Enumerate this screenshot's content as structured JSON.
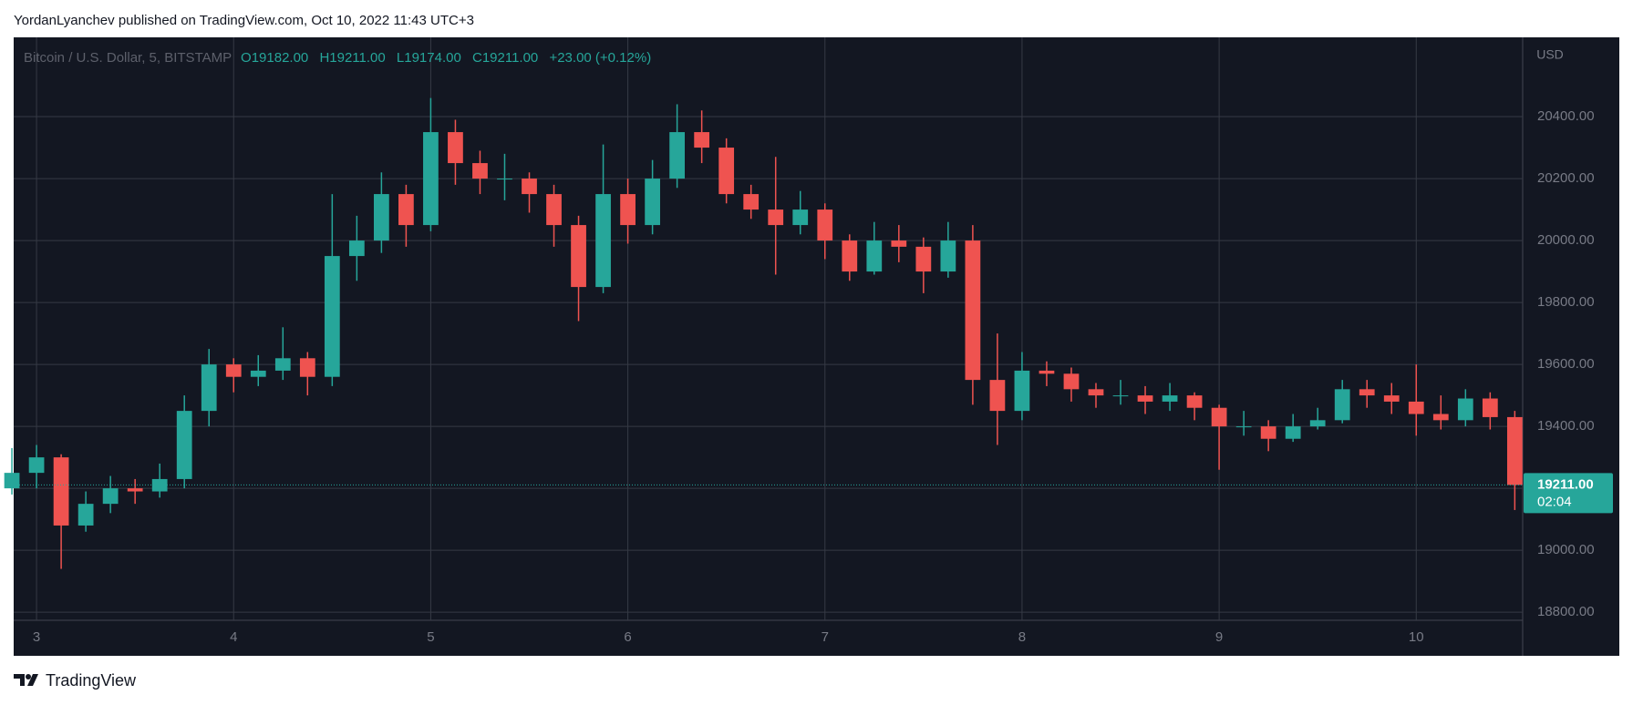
{
  "header": {
    "published": "YordanLyanchev published on TradingView.com, Oct 10, 2022 11:43 UTC+3"
  },
  "footer": {
    "brand": "TradingView"
  },
  "chart_data": {
    "type": "candlestick",
    "legend": {
      "symbol": "Bitcoin / U.S. Dollar, 5, BITSTAMP",
      "open": "O19182.00",
      "high": "H19211.00",
      "low": "L19174.00",
      "close": "C19211.00",
      "change": "+23.00 (+0.12%)"
    },
    "currency": "USD",
    "last_price": {
      "value": 19211,
      "label": "19211.00"
    },
    "countdown": "02:04",
    "up_color": "#26a69a",
    "down_color": "#ef5350",
    "grid": true,
    "xlim": [
      2.884,
      10.54
    ],
    "xticks": [
      3,
      4,
      5,
      6,
      7,
      8,
      9,
      10
    ],
    "ylim": [
      18774,
      20656
    ],
    "yticks": [
      {
        "value": 18800,
        "label": "18800.00"
      },
      {
        "value": 19000,
        "label": "19000.00"
      },
      {
        "value": 19200,
        "label": "19200.00"
      },
      {
        "value": 19400,
        "label": "19400.00"
      },
      {
        "value": 19600,
        "label": "19600.00"
      },
      {
        "value": 19800,
        "label": "19800.00"
      },
      {
        "value": 20000,
        "label": "20000.00"
      },
      {
        "value": 20200,
        "label": "20200.00"
      },
      {
        "value": 20400,
        "label": "20400.00"
      }
    ],
    "x": [
      2.875,
      3.0,
      3.125,
      3.25,
      3.375,
      3.5,
      3.625,
      3.75,
      3.875,
      4.0,
      4.125,
      4.25,
      4.375,
      4.5,
      4.625,
      4.75,
      4.875,
      5.0,
      5.125,
      5.25,
      5.375,
      5.5,
      5.625,
      5.75,
      5.875,
      6.0,
      6.125,
      6.25,
      6.375,
      6.5,
      6.625,
      6.75,
      6.875,
      7.0,
      7.125,
      7.25,
      7.375,
      7.5,
      7.625,
      7.75,
      7.875,
      8.0,
      8.125,
      8.25,
      8.375,
      8.5,
      8.625,
      8.75,
      8.875,
      9.0,
      9.125,
      9.25,
      9.375,
      9.5,
      9.625,
      9.75,
      9.875,
      10.0,
      10.125,
      10.25,
      10.375,
      10.5
    ],
    "open": [
      19200,
      19250,
      19300,
      19080,
      19150,
      19200,
      19190,
      19230,
      19450,
      19600,
      19560,
      19580,
      19620,
      19560,
      19950,
      20000,
      20150,
      20050,
      20350,
      20250,
      20200,
      20200,
      20150,
      20050,
      19850,
      20150,
      20050,
      20200,
      20350,
      20300,
      20150,
      20100,
      20050,
      20100,
      20000,
      19900,
      20000,
      19980,
      19900,
      20000,
      19550,
      19450,
      19580,
      19570,
      19520,
      19500,
      19500,
      19480,
      19500,
      19460,
      19400,
      19400,
      19360,
      19400,
      19420,
      19520,
      19500,
      19480,
      19440,
      19420,
      19490,
      19430
    ],
    "high": [
      19330,
      19340,
      19310,
      19190,
      19240,
      19230,
      19280,
      19500,
      19650,
      19620,
      19630,
      19720,
      19640,
      20150,
      20080,
      20220,
      20180,
      20460,
      20390,
      20290,
      20280,
      20220,
      20180,
      20080,
      20310,
      20200,
      20260,
      20440,
      20420,
      20330,
      20180,
      20270,
      20160,
      20120,
      20020,
      20060,
      20050,
      20010,
      20060,
      20050,
      19700,
      19640,
      19610,
      19590,
      19540,
      19550,
      19530,
      19540,
      19510,
      19470,
      19450,
      19420,
      19440,
      19460,
      19550,
      19550,
      19540,
      19600,
      19500,
      19520,
      19510,
      19450
    ],
    "low": [
      19180,
      19200,
      18940,
      19060,
      19120,
      19150,
      19170,
      19200,
      19400,
      19510,
      19530,
      19550,
      19500,
      19530,
      19870,
      19960,
      19980,
      20030,
      20180,
      20150,
      20130,
      20090,
      19980,
      19740,
      19830,
      19990,
      20020,
      20170,
      20250,
      20120,
      20070,
      19890,
      20020,
      19940,
      19870,
      19890,
      19930,
      19830,
      19880,
      19470,
      19340,
      19420,
      19530,
      19480,
      19460,
      19470,
      19440,
      19450,
      19420,
      19260,
      19370,
      19320,
      19350,
      19390,
      19410,
      19460,
      19440,
      19370,
      19390,
      19400,
      19390,
      19130
    ],
    "close": [
      19250,
      19300,
      19080,
      19150,
      19200,
      19190,
      19230,
      19450,
      19600,
      19560,
      19580,
      19620,
      19560,
      19950,
      20000,
      20150,
      20050,
      20350,
      20250,
      20200,
      20200,
      20150,
      20050,
      19850,
      20150,
      20050,
      20200,
      20350,
      20300,
      20150,
      20100,
      20050,
      20100,
      20000,
      19900,
      20000,
      19980,
      19900,
      20000,
      19550,
      19450,
      19580,
      19570,
      19520,
      19500,
      19500,
      19480,
      19500,
      19460,
      19400,
      19400,
      19360,
      19400,
      19420,
      19520,
      19500,
      19480,
      19440,
      19420,
      19490,
      19430,
      19211
    ]
  }
}
